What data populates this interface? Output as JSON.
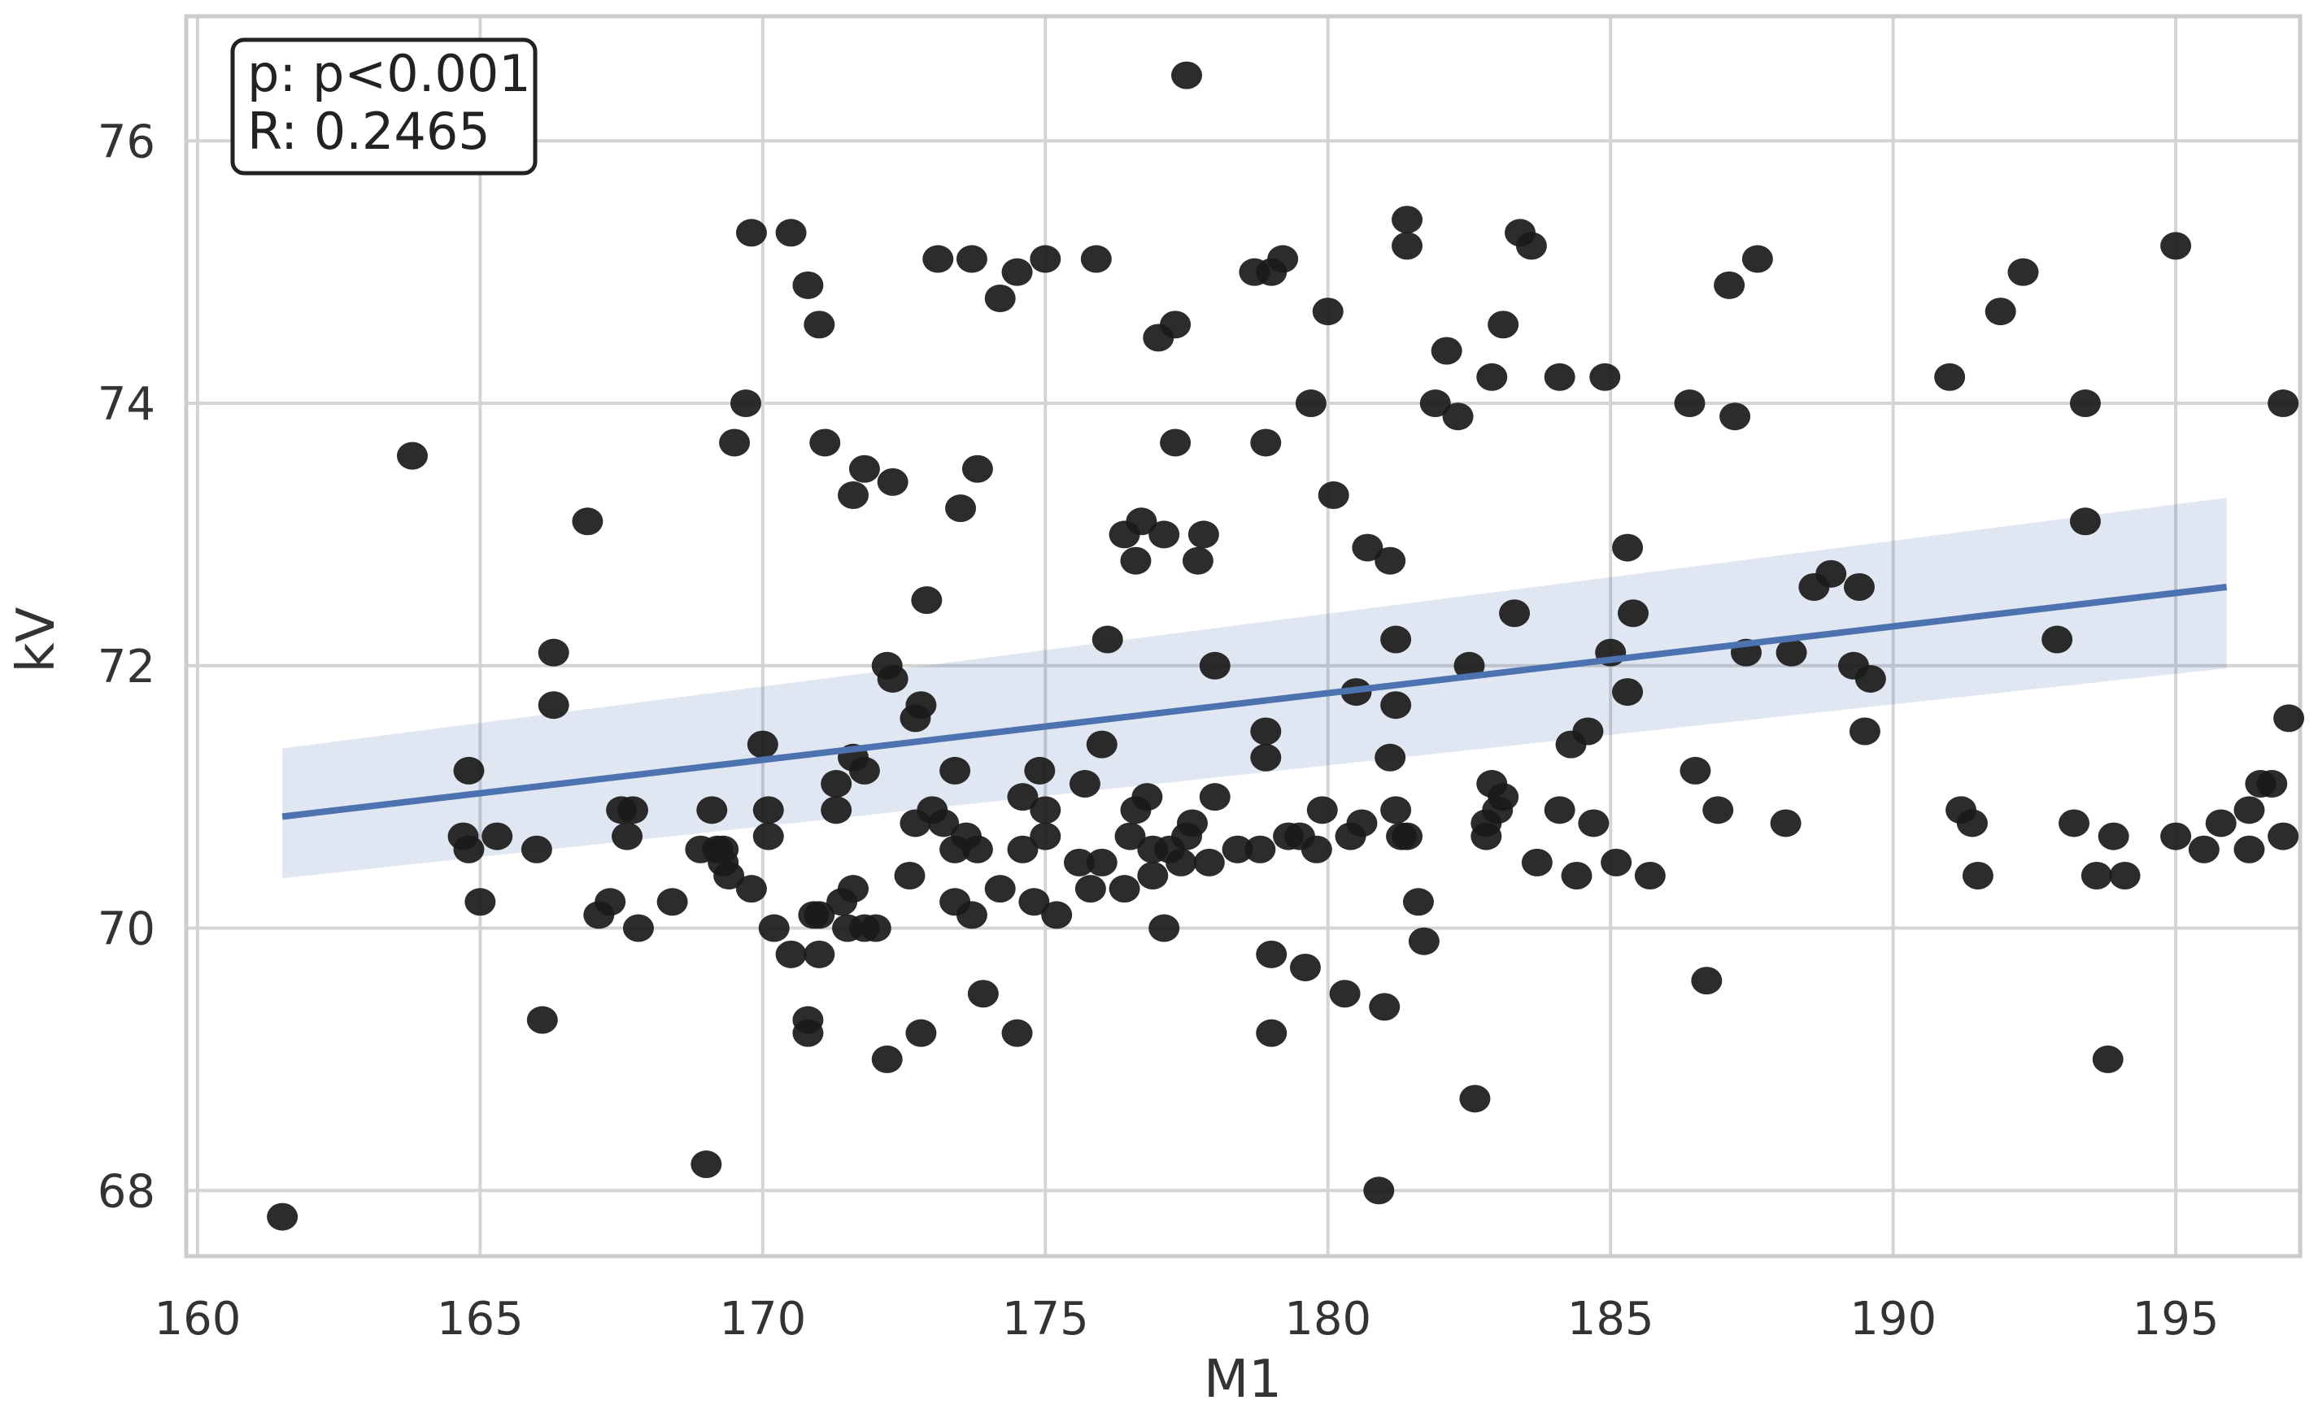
{
  "chart_data": {
    "type": "scatter",
    "title": "",
    "xlabel": "M1",
    "ylabel": "kV",
    "xlim": [
      159.8,
      197.2
    ],
    "ylim": [
      67.5,
      76.95
    ],
    "xticks": [
      160,
      165,
      170,
      175,
      180,
      185,
      190,
      195
    ],
    "yticks": [
      68,
      70,
      72,
      74,
      76
    ],
    "grid": true,
    "annotation": {
      "p_label": "p: p<0.001",
      "r_label": "R: 0.2465",
      "position": "top-left"
    },
    "colors": {
      "points": "#1a1a1a",
      "regression_line": "#4c72b0",
      "confidence_band": "#4c72b0"
    },
    "regression": {
      "x_start": 161.5,
      "y_start": 70.85,
      "x_end": 195.9,
      "y_end": 72.6,
      "ci_lower_start": 70.38,
      "ci_upper_start": 71.37,
      "ci_lower_end": 71.98,
      "ci_upper_end": 73.28
    },
    "points": [
      [
        161.5,
        67.8
      ],
      [
        163.8,
        73.6
      ],
      [
        164.8,
        71.2
      ],
      [
        164.7,
        70.7
      ],
      [
        164.8,
        70.6
      ],
      [
        165.0,
        70.2
      ],
      [
        165.3,
        70.7
      ],
      [
        166.0,
        70.6
      ],
      [
        166.1,
        69.3
      ],
      [
        166.3,
        72.1
      ],
      [
        166.3,
        71.7
      ],
      [
        166.9,
        73.1
      ],
      [
        167.1,
        70.1
      ],
      [
        167.3,
        70.2
      ],
      [
        167.5,
        70.9
      ],
      [
        167.7,
        70.9
      ],
      [
        167.6,
        70.7
      ],
      [
        167.8,
        70.0
      ],
      [
        168.4,
        70.2
      ],
      [
        168.9,
        70.6
      ],
      [
        169.0,
        68.2
      ],
      [
        169.1,
        70.9
      ],
      [
        169.2,
        70.6
      ],
      [
        169.3,
        70.6
      ],
      [
        169.3,
        70.5
      ],
      [
        169.4,
        70.4
      ],
      [
        169.5,
        73.7
      ],
      [
        169.7,
        74.0
      ],
      [
        169.8,
        75.3
      ],
      [
        169.8,
        70.3
      ],
      [
        170.0,
        71.4
      ],
      [
        170.1,
        70.9
      ],
      [
        170.1,
        70.7
      ],
      [
        170.2,
        70.0
      ],
      [
        170.5,
        75.3
      ],
      [
        170.5,
        69.8
      ],
      [
        170.8,
        74.9
      ],
      [
        170.8,
        69.3
      ],
      [
        170.8,
        69.2
      ],
      [
        170.9,
        70.1
      ],
      [
        171.0,
        70.1
      ],
      [
        171.0,
        69.8
      ],
      [
        171.0,
        74.6
      ],
      [
        171.1,
        73.7
      ],
      [
        171.3,
        71.1
      ],
      [
        171.3,
        70.9
      ],
      [
        171.4,
        70.2
      ],
      [
        171.5,
        70.0
      ],
      [
        171.6,
        71.3
      ],
      [
        171.6,
        70.3
      ],
      [
        171.6,
        73.3
      ],
      [
        171.8,
        73.5
      ],
      [
        171.8,
        71.2
      ],
      [
        171.8,
        70.0
      ],
      [
        172.0,
        70.0
      ],
      [
        172.2,
        72.0
      ],
      [
        172.2,
        69.0
      ],
      [
        172.3,
        71.9
      ],
      [
        172.3,
        73.4
      ],
      [
        172.6,
        70.4
      ],
      [
        172.7,
        70.8
      ],
      [
        172.7,
        71.6
      ],
      [
        172.8,
        71.7
      ],
      [
        172.8,
        69.2
      ],
      [
        172.9,
        72.5
      ],
      [
        173.0,
        70.9
      ],
      [
        173.1,
        75.1
      ],
      [
        173.2,
        70.8
      ],
      [
        173.4,
        71.2
      ],
      [
        173.4,
        70.2
      ],
      [
        173.4,
        70.6
      ],
      [
        173.5,
        73.2
      ],
      [
        173.6,
        70.7
      ],
      [
        173.7,
        70.1
      ],
      [
        173.7,
        75.1
      ],
      [
        173.8,
        73.5
      ],
      [
        173.8,
        70.6
      ],
      [
        173.9,
        69.5
      ],
      [
        174.2,
        74.8
      ],
      [
        174.2,
        70.3
      ],
      [
        174.5,
        75.0
      ],
      [
        174.5,
        69.2
      ],
      [
        174.6,
        70.6
      ],
      [
        174.6,
        71.0
      ],
      [
        174.8,
        70.2
      ],
      [
        174.9,
        71.2
      ],
      [
        175.0,
        75.1
      ],
      [
        175.0,
        70.9
      ],
      [
        175.0,
        70.7
      ],
      [
        175.2,
        70.1
      ],
      [
        175.6,
        70.5
      ],
      [
        175.7,
        71.1
      ],
      [
        175.8,
        70.3
      ],
      [
        175.9,
        75.1
      ],
      [
        176.0,
        70.5
      ],
      [
        176.0,
        71.4
      ],
      [
        176.1,
        72.2
      ],
      [
        176.4,
        70.3
      ],
      [
        176.4,
        73.0
      ],
      [
        176.5,
        70.7
      ],
      [
        176.6,
        72.8
      ],
      [
        176.6,
        70.9
      ],
      [
        176.7,
        73.1
      ],
      [
        176.8,
        71.0
      ],
      [
        176.9,
        70.6
      ],
      [
        176.9,
        70.4
      ],
      [
        177.0,
        74.5
      ],
      [
        177.1,
        73.0
      ],
      [
        177.1,
        70.0
      ],
      [
        177.2,
        70.6
      ],
      [
        177.3,
        74.6
      ],
      [
        177.3,
        73.7
      ],
      [
        177.4,
        70.5
      ],
      [
        177.5,
        76.5
      ],
      [
        177.5,
        70.7
      ],
      [
        177.6,
        70.8
      ],
      [
        177.7,
        72.8
      ],
      [
        177.8,
        73.0
      ],
      [
        177.9,
        70.5
      ],
      [
        178.0,
        71.0
      ],
      [
        178.0,
        72.0
      ],
      [
        178.4,
        70.6
      ],
      [
        178.7,
        75.0
      ],
      [
        178.8,
        70.6
      ],
      [
        178.9,
        73.7
      ],
      [
        178.9,
        71.5
      ],
      [
        178.9,
        71.3
      ],
      [
        179.0,
        75.0
      ],
      [
        179.0,
        69.8
      ],
      [
        179.0,
        69.2
      ],
      [
        179.2,
        75.1
      ],
      [
        179.3,
        70.7
      ],
      [
        179.5,
        70.7
      ],
      [
        179.6,
        69.7
      ],
      [
        179.7,
        74.0
      ],
      [
        179.8,
        70.6
      ],
      [
        179.9,
        70.9
      ],
      [
        180.0,
        74.7
      ],
      [
        180.1,
        73.3
      ],
      [
        180.3,
        69.5
      ],
      [
        180.4,
        70.7
      ],
      [
        180.5,
        71.8
      ],
      [
        180.6,
        70.8
      ],
      [
        180.7,
        72.9
      ],
      [
        180.9,
        68.0
      ],
      [
        181.0,
        69.4
      ],
      [
        181.1,
        71.3
      ],
      [
        181.1,
        72.8
      ],
      [
        181.2,
        70.9
      ],
      [
        181.2,
        72.2
      ],
      [
        181.2,
        71.7
      ],
      [
        181.3,
        70.7
      ],
      [
        181.4,
        70.7
      ],
      [
        181.4,
        75.4
      ],
      [
        181.4,
        75.2
      ],
      [
        181.6,
        70.2
      ],
      [
        181.7,
        69.9
      ],
      [
        181.9,
        74.0
      ],
      [
        182.1,
        74.4
      ],
      [
        182.3,
        73.9
      ],
      [
        182.5,
        72.0
      ],
      [
        182.6,
        68.7
      ],
      [
        182.8,
        70.8
      ],
      [
        182.8,
        70.7
      ],
      [
        182.9,
        71.1
      ],
      [
        182.9,
        74.2
      ],
      [
        183.0,
        70.9
      ],
      [
        183.1,
        74.6
      ],
      [
        183.1,
        71.0
      ],
      [
        183.3,
        72.4
      ],
      [
        183.4,
        75.3
      ],
      [
        183.6,
        75.2
      ],
      [
        183.7,
        70.5
      ],
      [
        184.1,
        74.2
      ],
      [
        184.1,
        70.9
      ],
      [
        184.3,
        71.4
      ],
      [
        184.4,
        70.4
      ],
      [
        184.6,
        71.5
      ],
      [
        184.7,
        70.8
      ],
      [
        184.9,
        74.2
      ],
      [
        185.0,
        72.1
      ],
      [
        185.1,
        70.5
      ],
      [
        185.3,
        72.9
      ],
      [
        185.3,
        71.8
      ],
      [
        185.4,
        72.4
      ],
      [
        185.7,
        70.4
      ],
      [
        186.4,
        74.0
      ],
      [
        186.5,
        71.2
      ],
      [
        186.7,
        69.6
      ],
      [
        186.9,
        70.9
      ],
      [
        187.1,
        74.9
      ],
      [
        187.2,
        73.9
      ],
      [
        187.4,
        72.1
      ],
      [
        187.6,
        75.1
      ],
      [
        188.1,
        70.8
      ],
      [
        188.2,
        72.1
      ],
      [
        188.6,
        72.6
      ],
      [
        188.9,
        72.7
      ],
      [
        189.3,
        72.0
      ],
      [
        189.4,
        72.6
      ],
      [
        189.5,
        71.5
      ],
      [
        189.6,
        71.9
      ],
      [
        191.0,
        74.2
      ],
      [
        191.2,
        70.9
      ],
      [
        191.4,
        70.8
      ],
      [
        191.5,
        70.4
      ],
      [
        191.9,
        74.7
      ],
      [
        192.3,
        75.0
      ],
      [
        192.9,
        72.2
      ],
      [
        193.2,
        70.8
      ],
      [
        193.4,
        74.0
      ],
      [
        193.4,
        73.1
      ],
      [
        193.6,
        70.4
      ],
      [
        193.8,
        69.0
      ],
      [
        193.9,
        70.7
      ],
      [
        194.1,
        70.4
      ],
      [
        195.0,
        70.7
      ],
      [
        195.0,
        75.2
      ],
      [
        195.5,
        70.6
      ],
      [
        195.8,
        70.8
      ],
      [
        196.3,
        70.9
      ],
      [
        196.3,
        70.6
      ],
      [
        196.5,
        71.1
      ],
      [
        196.7,
        71.1
      ],
      [
        196.9,
        70.7
      ],
      [
        196.9,
        74.0
      ],
      [
        197.0,
        71.6
      ]
    ]
  }
}
